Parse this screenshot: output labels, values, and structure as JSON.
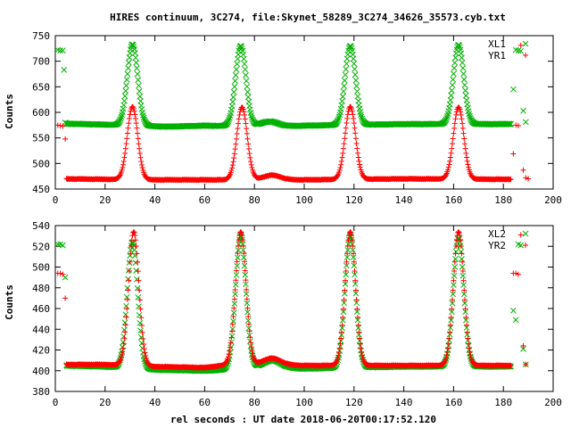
{
  "chart_data": [
    {
      "type": "scatter",
      "title": "HIRES continuum, 3C274, file:Skynet_58289_3C274_34626_35573.cyb.txt",
      "xlabel": "",
      "ylabel": "Counts",
      "xlim": [
        0,
        200
      ],
      "ylim": [
        450,
        750
      ],
      "xticks": [
        0,
        20,
        40,
        60,
        80,
        100,
        120,
        140,
        160,
        180,
        200
      ],
      "yticks": [
        450,
        500,
        550,
        600,
        650,
        700,
        750
      ],
      "legend_position": "top-right",
      "series": [
        {
          "name": "XL1",
          "marker": "x",
          "color": "#00b000",
          "baseline": [
            [
              3,
              578
            ],
            [
              20,
              576
            ],
            [
              45,
              572
            ],
            [
              60,
              574
            ],
            [
              86,
              572
            ],
            [
              100,
              574
            ],
            [
              140,
              577
            ],
            [
              180,
              577
            ],
            [
              188,
              578
            ]
          ],
          "peaks": [
            [
              31,
              733
            ],
            [
              74.5,
              730
            ],
            [
              118.5,
              730
            ],
            [
              162,
              732
            ]
          ],
          "bump": [
            86,
            582
          ],
          "edge_points": [
            [
              1,
              722
            ],
            [
              2,
              721
            ],
            [
              3,
              721
            ],
            [
              3.5,
              683
            ],
            [
              4,
              580
            ],
            [
              184,
              645
            ],
            [
              185,
              722
            ],
            [
              186,
              721
            ],
            [
              187,
              720
            ],
            [
              188,
              603
            ],
            [
              189,
              581
            ]
          ]
        },
        {
          "name": "YR1",
          "marker": "+",
          "color": "#ff0000",
          "baseline": [
            [
              3,
              470
            ],
            [
              40,
              468
            ],
            [
              70,
              468
            ],
            [
              100,
              468
            ],
            [
              140,
              470
            ],
            [
              180,
              469
            ],
            [
              190,
              470
            ]
          ],
          "peaks": [
            [
              31,
              611
            ],
            [
              75,
              610
            ],
            [
              118.5,
              611
            ],
            [
              162,
              610
            ]
          ],
          "bump": [
            87,
            477
          ],
          "edge_points": [
            [
              1,
              575
            ],
            [
              2,
              574
            ],
            [
              3,
              573
            ],
            [
              4,
              548
            ],
            [
              184,
              519
            ],
            [
              185,
              575
            ],
            [
              186,
              574
            ],
            [
              187,
              731
            ],
            [
              188,
              487
            ],
            [
              189,
              472
            ],
            [
              190,
              470
            ]
          ]
        }
      ]
    },
    {
      "type": "scatter",
      "title": "",
      "xlabel": "rel seconds : UT date 2018-06-20T00:17:52.120",
      "ylabel": "Counts",
      "xlim": [
        0,
        200
      ],
      "ylim": [
        380,
        540
      ],
      "xticks": [
        0,
        20,
        40,
        60,
        80,
        100,
        120,
        140,
        160,
        180,
        200
      ],
      "yticks": [
        380,
        400,
        420,
        440,
        460,
        480,
        500,
        520,
        540
      ],
      "legend_position": "top-right",
      "series": [
        {
          "name": "XL2",
          "marker": "x",
          "color": "#00b000",
          "baseline": [
            [
              3,
              405
            ],
            [
              20,
              404
            ],
            [
              40,
              401
            ],
            [
              60,
              400
            ],
            [
              86,
              403
            ],
            [
              100,
              402
            ],
            [
              140,
              404
            ],
            [
              180,
              404
            ],
            [
              189,
              405
            ]
          ],
          "peaks": [
            [
              31,
              524
            ],
            [
              74.5,
              530
            ],
            [
              118.5,
              530
            ],
            [
              162,
              528
            ]
          ],
          "bump": [
            87,
            410
          ],
          "edge_points": [
            [
              1,
              522
            ],
            [
              2,
              522
            ],
            [
              3,
              521
            ],
            [
              4,
              490
            ],
            [
              184,
              458
            ],
            [
              185,
              449
            ],
            [
              186,
              522
            ],
            [
              187,
              521
            ],
            [
              188,
              421
            ],
            [
              189,
              406
            ]
          ]
        },
        {
          "name": "YR2",
          "marker": "+",
          "color": "#ff0000",
          "baseline": [
            [
              3,
              406
            ],
            [
              20,
              406
            ],
            [
              40,
              404
            ],
            [
              60,
              403
            ],
            [
              70,
              406
            ],
            [
              86,
              406
            ],
            [
              100,
              405
            ],
            [
              140,
              405
            ],
            [
              180,
              405
            ],
            [
              190,
              405
            ]
          ],
          "peaks": [
            [
              31.5,
              534
            ],
            [
              74.5,
              534
            ],
            [
              118.5,
              534
            ],
            [
              162,
              534
            ]
          ],
          "bump": [
            87,
            412
          ],
          "edge_points": [
            [
              1,
              494
            ],
            [
              2,
              494
            ],
            [
              3,
              493
            ],
            [
              4,
              470
            ],
            [
              184,
              494
            ],
            [
              185,
              494
            ],
            [
              186,
              493
            ],
            [
              187,
              531
            ],
            [
              188,
              424
            ],
            [
              189,
              406
            ]
          ]
        }
      ]
    }
  ]
}
